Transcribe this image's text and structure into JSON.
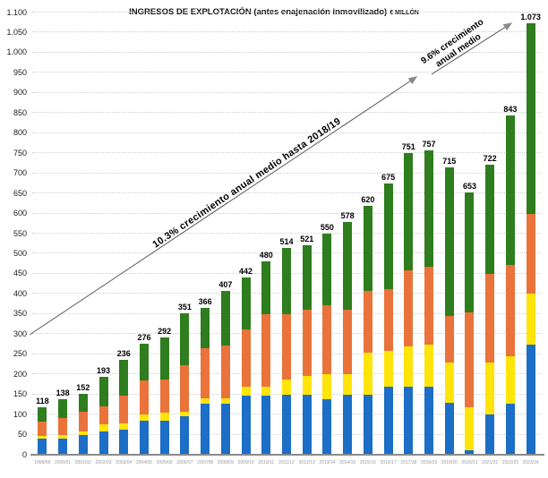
{
  "chart_data": {
    "type": "bar",
    "stacked": true,
    "title": "INGRESOS DE EXPLOTACIÓN (antes enajenación inmovilizado)",
    "unit": "€ MILLÓN",
    "categories": [
      "1999/00",
      "2000/01",
      "2001/02",
      "2002/03",
      "2003/04",
      "2004/05",
      "2005/06",
      "2006/07",
      "2007/08",
      "2008/09",
      "2009/10",
      "2010/11",
      "2011/12",
      "2012/13",
      "2013/14",
      "2014/15",
      "2015/16",
      "2016/17",
      "2017/18",
      "2018/19",
      "2019/20",
      "2020/21",
      "2021/22",
      "2022/23",
      "2023/24"
    ],
    "series": [
      {
        "name": "segment-blue",
        "color": "#1c6ec6",
        "values": [
          40,
          40,
          48,
          58,
          62,
          85,
          85,
          95,
          128,
          128,
          148,
          148,
          150,
          150,
          138,
          150,
          150,
          170,
          170,
          170,
          130,
          12,
          100,
          128,
          275
        ]
      },
      {
        "name": "segment-yellow",
        "color": "#ffe40a",
        "values": [
          6,
          8,
          10,
          17,
          16,
          15,
          20,
          13,
          12,
          12,
          22,
          22,
          38,
          45,
          62,
          50,
          105,
          88,
          100,
          105,
          100,
          106,
          130,
          117,
          125
        ]
      },
      {
        "name": "segment-orange",
        "color": "#e9733a",
        "values": [
          36,
          44,
          50,
          45,
          70,
          85,
          83,
          114,
          125,
          132,
          142,
          180,
          162,
          165,
          172,
          160,
          153,
          154,
          188,
          192,
          115,
          237,
          220,
          227,
          200
        ]
      },
      {
        "name": "segment-green",
        "color": "#2e7d1e",
        "values": [
          36,
          46,
          44,
          73,
          88,
          91,
          104,
          129,
          101,
          135,
          130,
          130,
          164,
          161,
          178,
          218,
          212,
          263,
          293,
          290,
          370,
          298,
          272,
          371,
          473
        ]
      }
    ],
    "totals": [
      118,
      138,
      152,
      193,
      236,
      276,
      292,
      351,
      366,
      407,
      442,
      480,
      514,
      521,
      550,
      578,
      620,
      675,
      751,
      757,
      715,
      653,
      722,
      843,
      1073
    ],
    "total_labels": [
      "118",
      "138",
      "152",
      "193",
      "236",
      "276",
      "292",
      "351",
      "366",
      "407",
      "442",
      "480",
      "514",
      "521",
      "550",
      "578",
      "620",
      "675",
      "751",
      "757",
      "715",
      "653",
      "722",
      "843",
      "1.073"
    ],
    "ylim": [
      0,
      1100
    ],
    "ytick_step": 50,
    "ytick_labels": [
      "0",
      "50",
      "100",
      "150",
      "200",
      "250",
      "300",
      "350",
      "400",
      "450",
      "500",
      "550",
      "600",
      "650",
      "700",
      "750",
      "800",
      "850",
      "900",
      "950",
      "1.000",
      "1.050",
      "1.100"
    ],
    "grid": "horizontal dotted",
    "legend": "none"
  },
  "annotations": {
    "arrow1_label": "10.3% crecimiento anual medio hasta 2018/19",
    "arrow2_line1": "9.6% crecimiento",
    "arrow2_line2": "anual medio",
    "arrow_color": "#555555",
    "arrowhead_color": "#8a8a8a"
  }
}
